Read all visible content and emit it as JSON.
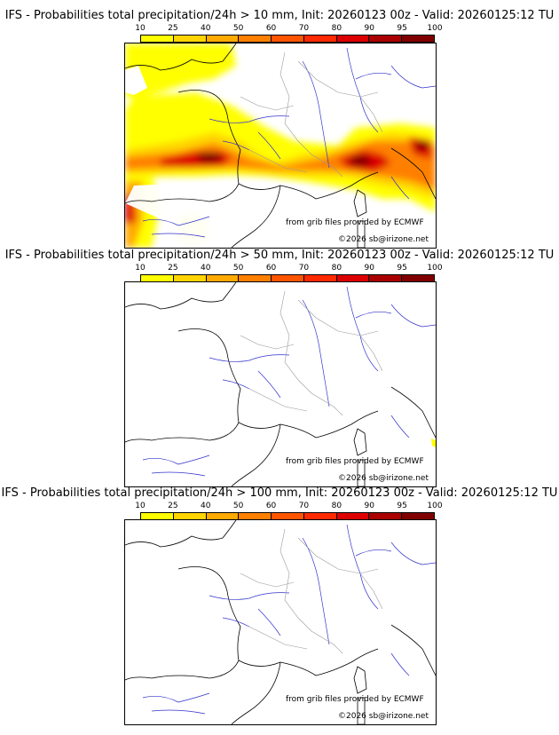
{
  "colorbar": {
    "labels": [
      "10",
      "25",
      "40",
      "50",
      "60",
      "70",
      "80",
      "90",
      "95",
      "100"
    ],
    "colors": [
      "#ffff00",
      "#ffd400",
      "#ffaa00",
      "#ff8000",
      "#ff5500",
      "#ff2a00",
      "#dd0000",
      "#aa0000",
      "#800000"
    ]
  },
  "credits": {
    "source": "from grib files provided by ECMWF",
    "copyright": "©2026 sb@irizone.net"
  },
  "panels": [
    {
      "title": "IFS - Probabilities total precipitation/24h > 10 mm, Init: 20260123 00z - Valid: 20260125:12 TU"
    },
    {
      "title": "IFS - Probabilities total precipitation/24h > 50 mm, Init: 20260123 00z - Valid: 20260125:12 TU"
    },
    {
      "title": "IFS - Probabilities total precipitation/24h > 100 mm, Init: 20260123 00z - Valid: 20260125:12 TU"
    }
  ]
}
